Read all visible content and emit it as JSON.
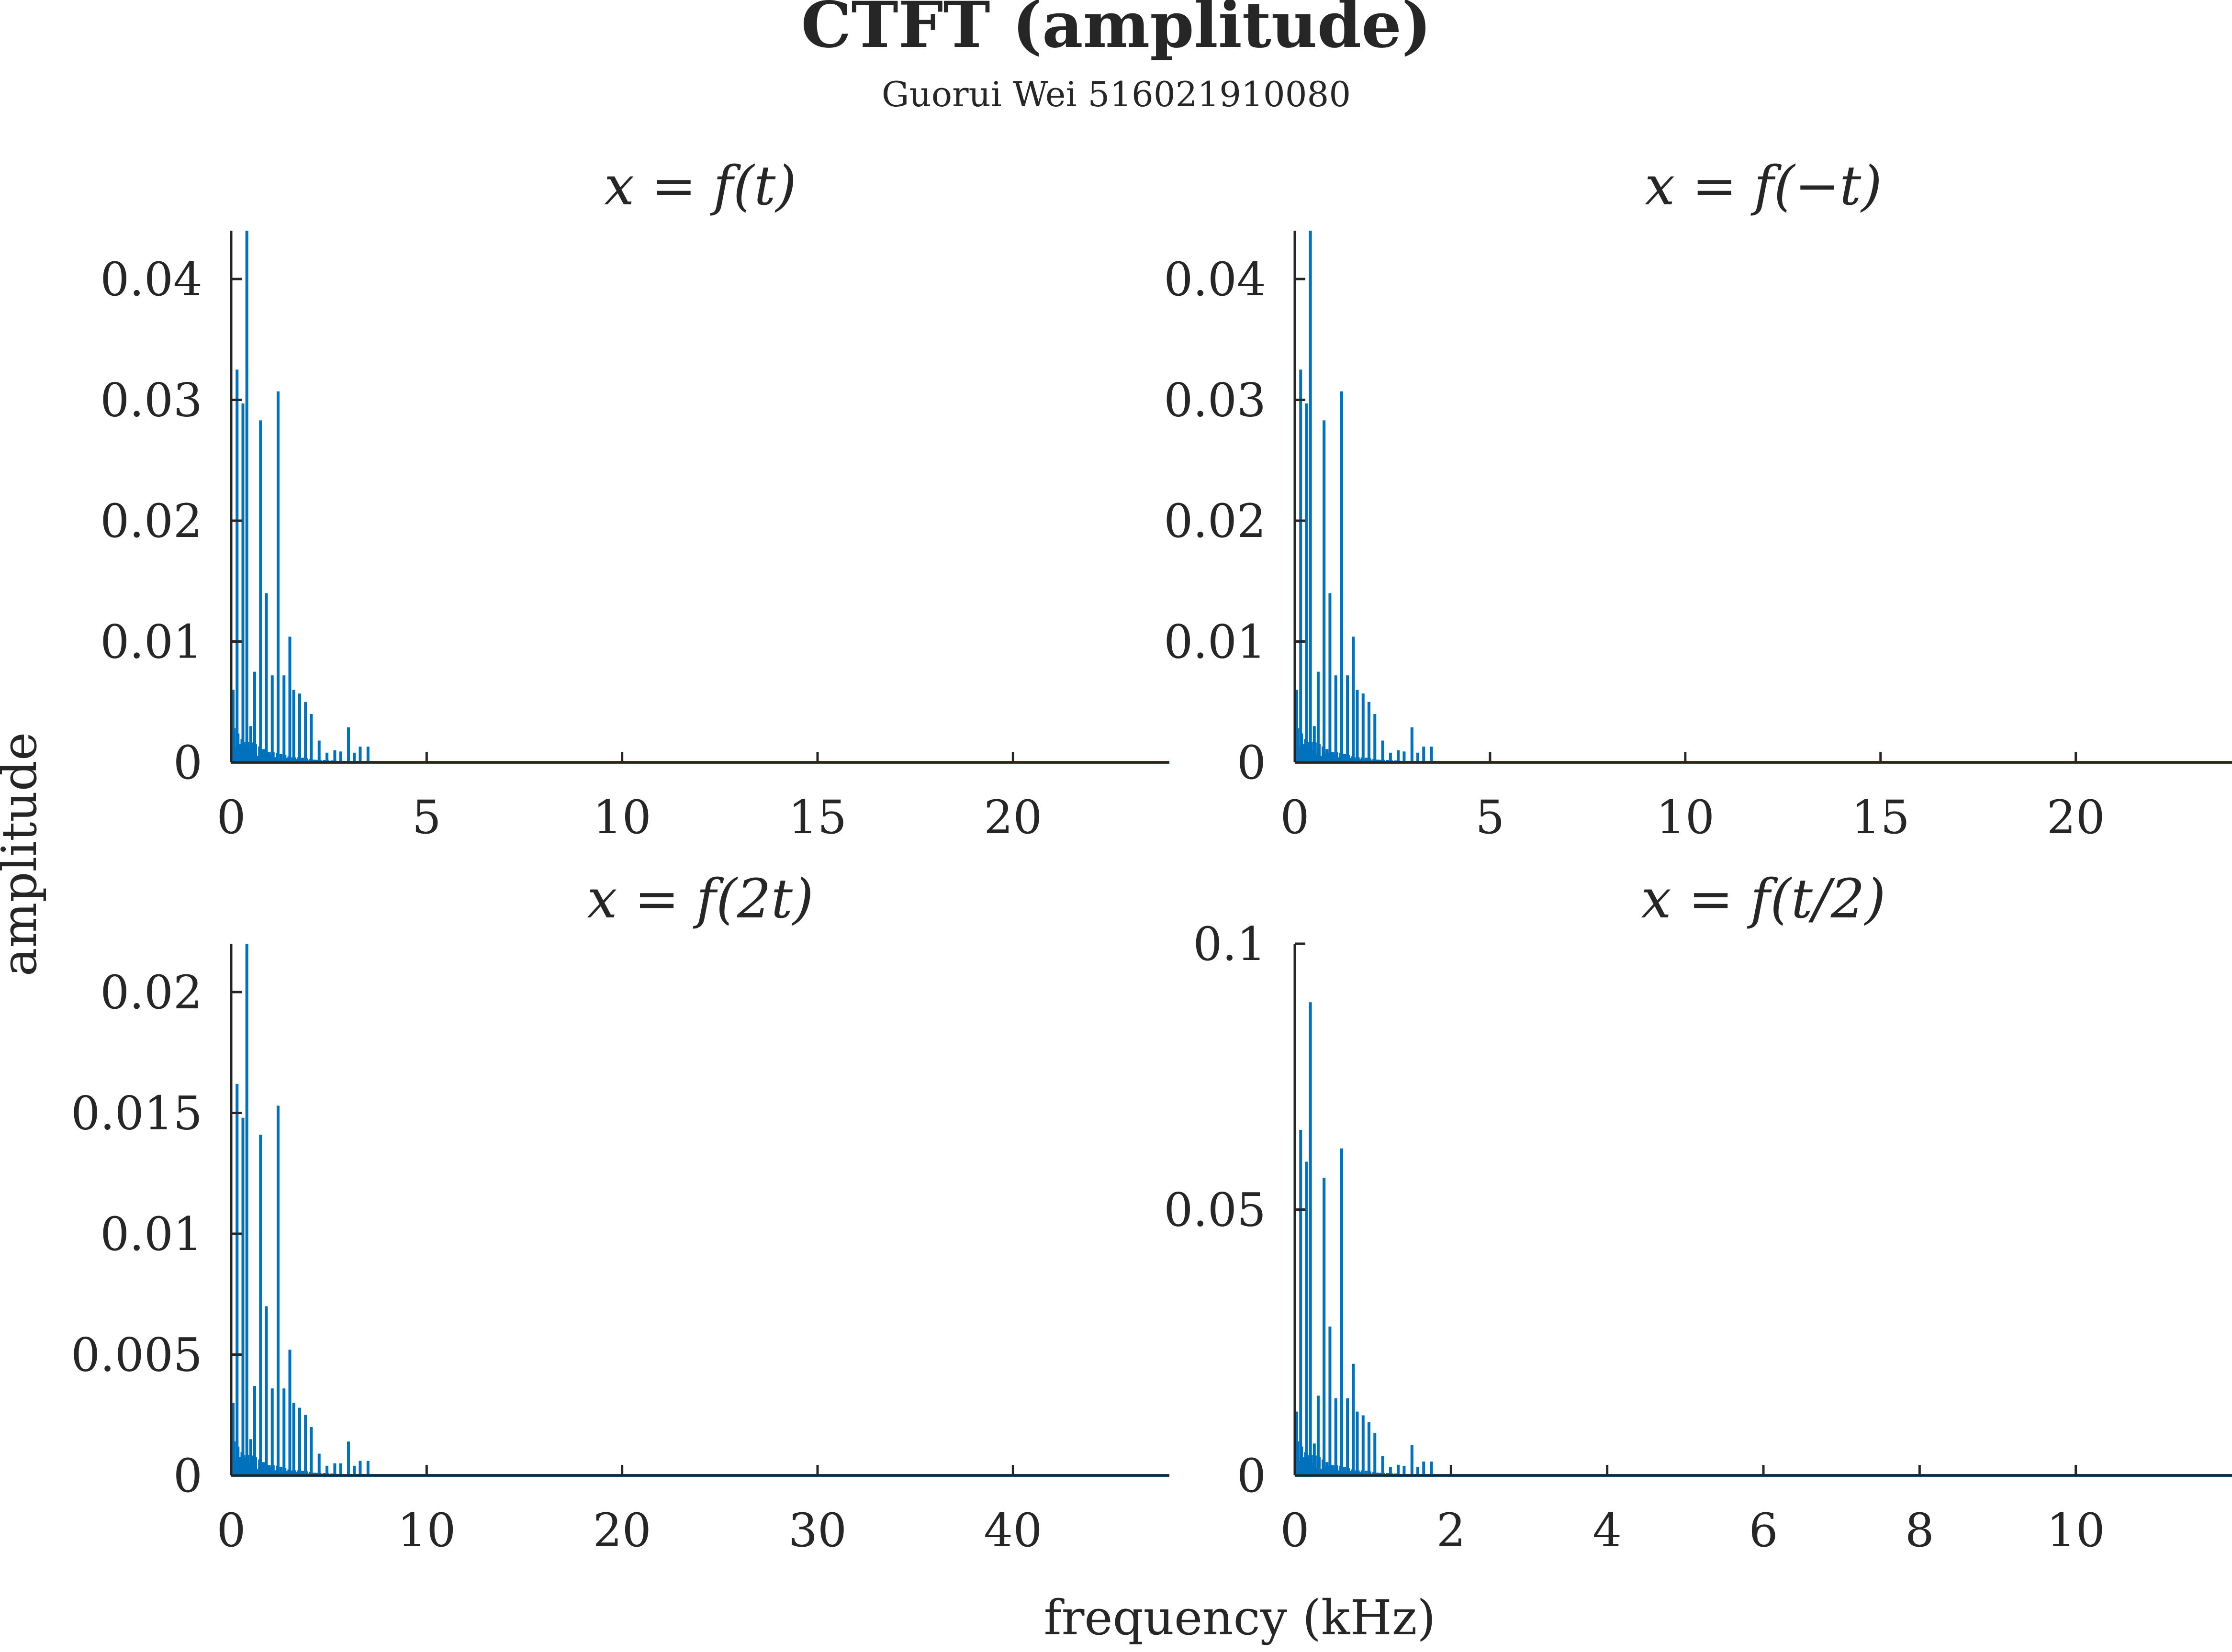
{
  "figure": {
    "title": "CTFT (amplitude)",
    "subtitle": "Guorui Wei 516021910080",
    "xlabel": "frequency (kHz)",
    "ylabel": "amplitude",
    "line_color": "#0072bd",
    "axis_color": "#262626"
  },
  "chart_data": [
    {
      "type": "line",
      "title": "x = f(t)",
      "xlabel": "frequency (kHz)",
      "ylabel": "amplitude",
      "xlim": [
        0,
        24
      ],
      "ylim": [
        0,
        0.044
      ],
      "xticks": [
        0,
        5,
        10,
        15,
        20
      ],
      "xtick_labels": [
        "0",
        "5",
        "10",
        "15",
        "20"
      ],
      "yticks": [
        0,
        0.01,
        0.02,
        0.03,
        0.04
      ],
      "ytick_labels": [
        "0",
        "0.01",
        "0.02",
        "0.03",
        "0.04"
      ],
      "grid": false,
      "peaks": [
        {
          "x": 0.05,
          "y": 0.006
        },
        {
          "x": 0.15,
          "y": 0.0325
        },
        {
          "x": 0.3,
          "y": 0.0297
        },
        {
          "x": 0.4,
          "y": 0.044
        },
        {
          "x": 0.5,
          "y": 0.003
        },
        {
          "x": 0.6,
          "y": 0.0075
        },
        {
          "x": 0.75,
          "y": 0.0283
        },
        {
          "x": 0.9,
          "y": 0.014
        },
        {
          "x": 1.05,
          "y": 0.0072
        },
        {
          "x": 1.2,
          "y": 0.0307
        },
        {
          "x": 1.35,
          "y": 0.0072
        },
        {
          "x": 1.5,
          "y": 0.0104
        },
        {
          "x": 1.6,
          "y": 0.006
        },
        {
          "x": 1.75,
          "y": 0.0057
        },
        {
          "x": 1.9,
          "y": 0.005
        },
        {
          "x": 2.05,
          "y": 0.004
        },
        {
          "x": 2.25,
          "y": 0.0018
        },
        {
          "x": 2.45,
          "y": 0.0008
        },
        {
          "x": 2.65,
          "y": 0.001
        },
        {
          "x": 2.8,
          "y": 0.0009
        },
        {
          "x": 3.0,
          "y": 0.0029
        },
        {
          "x": 3.15,
          "y": 0.0008
        },
        {
          "x": 3.3,
          "y": 0.0013
        },
        {
          "x": 3.5,
          "y": 0.0013
        }
      ]
    },
    {
      "type": "line",
      "title": "x = f(−t)",
      "xlabel": "frequency (kHz)",
      "ylabel": "amplitude",
      "xlim": [
        0,
        24
      ],
      "ylim": [
        0,
        0.044
      ],
      "xticks": [
        0,
        5,
        10,
        15,
        20
      ],
      "xtick_labels": [
        "0",
        "5",
        "10",
        "15",
        "20"
      ],
      "yticks": [
        0,
        0.01,
        0.02,
        0.03,
        0.04
      ],
      "ytick_labels": [
        "0",
        "0.01",
        "0.02",
        "0.03",
        "0.04"
      ],
      "grid": false,
      "peaks": [
        {
          "x": 0.05,
          "y": 0.006
        },
        {
          "x": 0.15,
          "y": 0.0325
        },
        {
          "x": 0.3,
          "y": 0.0297
        },
        {
          "x": 0.4,
          "y": 0.044
        },
        {
          "x": 0.5,
          "y": 0.003
        },
        {
          "x": 0.6,
          "y": 0.0075
        },
        {
          "x": 0.75,
          "y": 0.0283
        },
        {
          "x": 0.9,
          "y": 0.014
        },
        {
          "x": 1.05,
          "y": 0.0072
        },
        {
          "x": 1.2,
          "y": 0.0307
        },
        {
          "x": 1.35,
          "y": 0.0072
        },
        {
          "x": 1.5,
          "y": 0.0104
        },
        {
          "x": 1.6,
          "y": 0.006
        },
        {
          "x": 1.75,
          "y": 0.0057
        },
        {
          "x": 1.9,
          "y": 0.005
        },
        {
          "x": 2.05,
          "y": 0.004
        },
        {
          "x": 2.25,
          "y": 0.0018
        },
        {
          "x": 2.45,
          "y": 0.0008
        },
        {
          "x": 2.65,
          "y": 0.001
        },
        {
          "x": 2.8,
          "y": 0.0009
        },
        {
          "x": 3.0,
          "y": 0.0029
        },
        {
          "x": 3.15,
          "y": 0.0008
        },
        {
          "x": 3.3,
          "y": 0.0013
        },
        {
          "x": 3.5,
          "y": 0.0013
        }
      ]
    },
    {
      "type": "line",
      "title": "x = f(2t)",
      "xlabel": "frequency (kHz)",
      "ylabel": "amplitude",
      "xlim": [
        0,
        48
      ],
      "ylim": [
        0,
        0.022
      ],
      "xticks": [
        0,
        10,
        20,
        30,
        40
      ],
      "xtick_labels": [
        "0",
        "10",
        "20",
        "30",
        "40"
      ],
      "yticks": [
        0,
        0.005,
        0.01,
        0.015,
        0.02
      ],
      "ytick_labels": [
        "0",
        "0.005",
        "0.01",
        "0.015",
        "0.02"
      ],
      "grid": false,
      "peaks": [
        {
          "x": 0.1,
          "y": 0.003
        },
        {
          "x": 0.3,
          "y": 0.0162
        },
        {
          "x": 0.6,
          "y": 0.0148
        },
        {
          "x": 0.8,
          "y": 0.022
        },
        {
          "x": 1.0,
          "y": 0.0015
        },
        {
          "x": 1.2,
          "y": 0.0037
        },
        {
          "x": 1.5,
          "y": 0.0141
        },
        {
          "x": 1.8,
          "y": 0.007
        },
        {
          "x": 2.1,
          "y": 0.0036
        },
        {
          "x": 2.4,
          "y": 0.0153
        },
        {
          "x": 2.7,
          "y": 0.0036
        },
        {
          "x": 3.0,
          "y": 0.0052
        },
        {
          "x": 3.2,
          "y": 0.003
        },
        {
          "x": 3.5,
          "y": 0.0028
        },
        {
          "x": 3.8,
          "y": 0.0025
        },
        {
          "x": 4.1,
          "y": 0.002
        },
        {
          "x": 4.5,
          "y": 0.0009
        },
        {
          "x": 4.9,
          "y": 0.0004
        },
        {
          "x": 5.3,
          "y": 0.0005
        },
        {
          "x": 5.6,
          "y": 0.0005
        },
        {
          "x": 6.0,
          "y": 0.0014
        },
        {
          "x": 6.3,
          "y": 0.0004
        },
        {
          "x": 6.6,
          "y": 0.0006
        },
        {
          "x": 7.0,
          "y": 0.0006
        }
      ]
    },
    {
      "type": "line",
      "title": "x = f(t/2)",
      "xlabel": "frequency (kHz)",
      "ylabel": "amplitude",
      "xlim": [
        0,
        12
      ],
      "ylim": [
        0,
        0.1
      ],
      "xticks": [
        0,
        2,
        4,
        6,
        8,
        10
      ],
      "xtick_labels": [
        "0",
        "2",
        "4",
        "6",
        "8",
        "10"
      ],
      "yticks": [
        0,
        0.05,
        0.1
      ],
      "ytick_labels": [
        "0",
        "0.05",
        "0.1"
      ],
      "grid": false,
      "peaks": [
        {
          "x": 0.025,
          "y": 0.012
        },
        {
          "x": 0.075,
          "y": 0.065
        },
        {
          "x": 0.15,
          "y": 0.059
        },
        {
          "x": 0.2,
          "y": 0.089
        },
        {
          "x": 0.25,
          "y": 0.006
        },
        {
          "x": 0.3,
          "y": 0.015
        },
        {
          "x": 0.375,
          "y": 0.056
        },
        {
          "x": 0.45,
          "y": 0.028
        },
        {
          "x": 0.525,
          "y": 0.0145
        },
        {
          "x": 0.6,
          "y": 0.0615
        },
        {
          "x": 0.675,
          "y": 0.0145
        },
        {
          "x": 0.75,
          "y": 0.021
        },
        {
          "x": 0.8,
          "y": 0.012
        },
        {
          "x": 0.875,
          "y": 0.0113
        },
        {
          "x": 0.95,
          "y": 0.01
        },
        {
          "x": 1.025,
          "y": 0.008
        },
        {
          "x": 1.125,
          "y": 0.0036
        },
        {
          "x": 1.225,
          "y": 0.0016
        },
        {
          "x": 1.325,
          "y": 0.002
        },
        {
          "x": 1.4,
          "y": 0.0018
        },
        {
          "x": 1.5,
          "y": 0.0057
        },
        {
          "x": 1.575,
          "y": 0.0016
        },
        {
          "x": 1.65,
          "y": 0.0026
        },
        {
          "x": 1.75,
          "y": 0.0026
        }
      ]
    }
  ]
}
